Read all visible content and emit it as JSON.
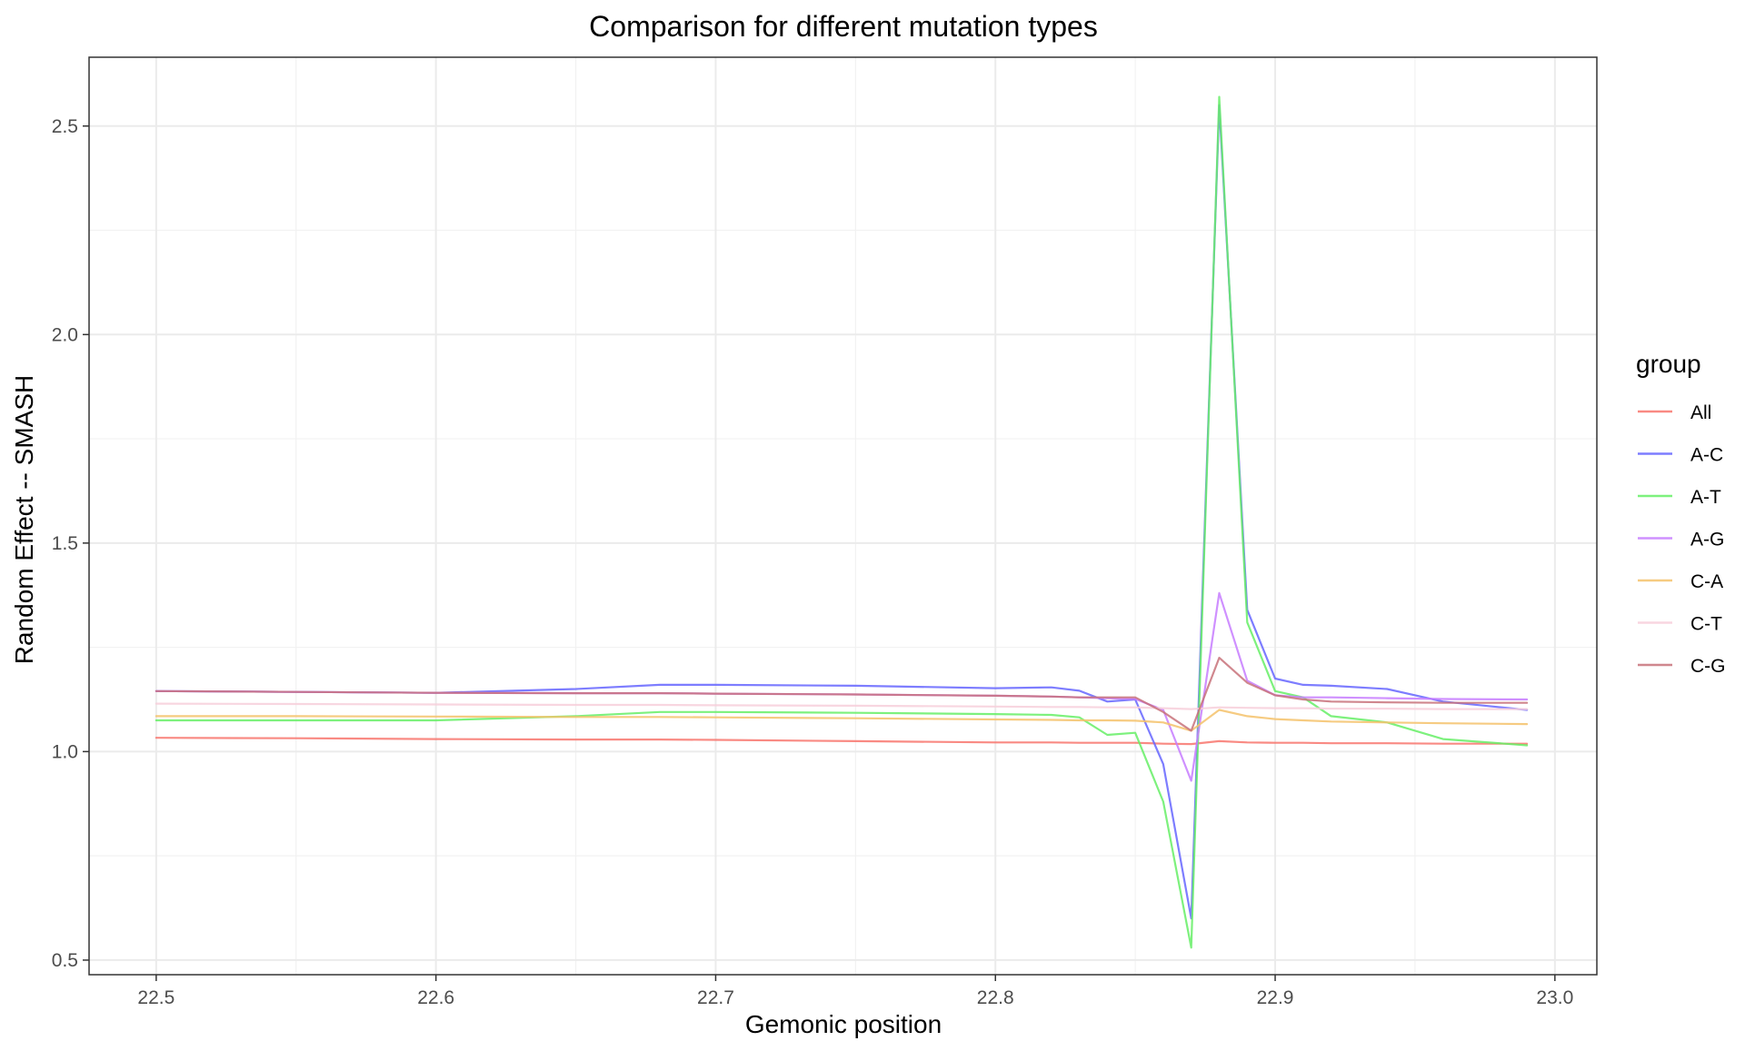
{
  "chart_data": {
    "type": "line",
    "title": "Comparison for different mutation types",
    "xlabel": "Gemonic position",
    "ylabel": "Random Effect -- SMASH",
    "xlim": [
      22.476,
      23.015
    ],
    "ylim": [
      0.465,
      2.665
    ],
    "x_ticks": [
      22.5,
      22.6,
      22.7,
      22.8,
      22.9,
      23.0
    ],
    "x_tick_labels": [
      "22.5",
      "22.6",
      "22.7",
      "22.8",
      "22.9",
      "23.0"
    ],
    "y_ticks": [
      0.5,
      1.0,
      1.5,
      2.0,
      2.5
    ],
    "y_tick_labels": [
      "0.5",
      "1.0",
      "1.5",
      "2.0",
      "2.5"
    ],
    "grid": true,
    "legend": {
      "title": "group",
      "placement": "right"
    },
    "x": [
      22.5,
      22.55,
      22.6,
      22.65,
      22.68,
      22.7,
      22.75,
      22.8,
      22.82,
      22.83,
      22.84,
      22.85,
      22.86,
      22.87,
      22.88,
      22.89,
      22.9,
      22.91,
      22.92,
      22.94,
      22.96,
      22.99
    ],
    "series": [
      {
        "name": "All",
        "color": "#F8766D",
        "values": [
          1.033,
          1.032,
          1.03,
          1.029,
          1.029,
          1.028,
          1.025,
          1.022,
          1.022,
          1.021,
          1.021,
          1.021,
          1.019,
          1.018,
          1.025,
          1.022,
          1.021,
          1.021,
          1.02,
          1.02,
          1.019,
          1.019
        ]
      },
      {
        "name": "A-C",
        "color": "#6666FF",
        "values": [
          1.145,
          1.143,
          1.141,
          1.15,
          1.16,
          1.16,
          1.158,
          1.152,
          1.154,
          1.146,
          1.12,
          1.125,
          0.97,
          0.6,
          2.55,
          1.34,
          1.175,
          1.16,
          1.158,
          1.15,
          1.12,
          1.1
        ]
      },
      {
        "name": "A-T",
        "color": "#66EE66",
        "values": [
          1.075,
          1.075,
          1.075,
          1.085,
          1.095,
          1.095,
          1.093,
          1.09,
          1.088,
          1.082,
          1.04,
          1.045,
          0.88,
          0.53,
          2.57,
          1.31,
          1.145,
          1.13,
          1.085,
          1.07,
          1.03,
          1.015
        ]
      },
      {
        "name": "A-G",
        "color": "#C77CFF",
        "values": [
          1.145,
          1.143,
          1.141,
          1.14,
          1.14,
          1.139,
          1.137,
          1.134,
          1.132,
          1.13,
          1.128,
          1.126,
          1.1,
          0.93,
          1.38,
          1.17,
          1.135,
          1.13,
          1.13,
          1.128,
          1.126,
          1.125
        ]
      },
      {
        "name": "C-A",
        "color": "#F5C26B",
        "values": [
          1.085,
          1.085,
          1.084,
          1.083,
          1.083,
          1.082,
          1.08,
          1.077,
          1.076,
          1.075,
          1.075,
          1.074,
          1.07,
          1.05,
          1.1,
          1.085,
          1.078,
          1.075,
          1.072,
          1.07,
          1.068,
          1.066
        ]
      },
      {
        "name": "C-T",
        "color": "#F7CFDA",
        "values": [
          1.115,
          1.114,
          1.113,
          1.112,
          1.112,
          1.111,
          1.11,
          1.108,
          1.107,
          1.107,
          1.106,
          1.106,
          1.104,
          1.102,
          1.106,
          1.105,
          1.104,
          1.104,
          1.103,
          1.103,
          1.102,
          1.102
        ]
      },
      {
        "name": "C-G",
        "color": "#C8727A",
        "values": [
          1.145,
          1.143,
          1.141,
          1.14,
          1.14,
          1.139,
          1.137,
          1.134,
          1.132,
          1.13,
          1.13,
          1.13,
          1.095,
          1.05,
          1.225,
          1.165,
          1.135,
          1.125,
          1.12,
          1.118,
          1.117,
          1.117
        ]
      }
    ]
  }
}
